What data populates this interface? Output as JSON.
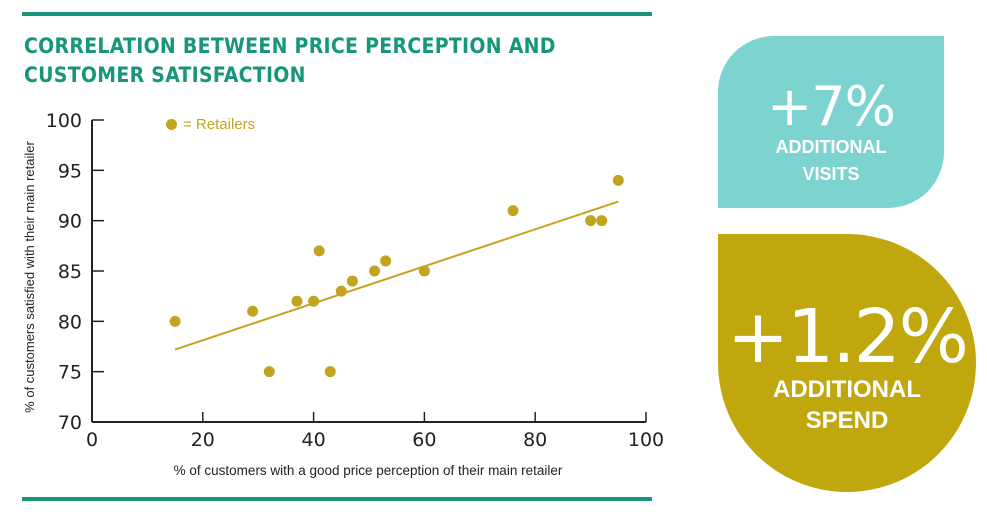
{
  "header": {
    "title": "CORRELATION BETWEEN PRICE PERCEPTION AND CUSTOMER SATISFACTION"
  },
  "colors": {
    "accent_green": "#17967a",
    "point_gold": "#c2a41e",
    "visits_panel": "#7dd3d0",
    "spend_panel": "#bfa70d"
  },
  "chart_data": {
    "type": "scatter",
    "title": "CORRELATION BETWEEN PRICE PERCEPTION AND CUSTOMER SATISFACTION",
    "xlabel": "% of customers with a good price perception of their main retailer",
    "ylabel": "% of customers satisfied with their main retailer",
    "xlim": [
      0,
      100
    ],
    "ylim": [
      70,
      100
    ],
    "x_ticks": [
      0,
      20,
      40,
      60,
      80,
      100
    ],
    "y_ticks": [
      70,
      75,
      80,
      85,
      90,
      95,
      100
    ],
    "legend": {
      "marker": "●",
      "label": "= Retailers",
      "position": "top-left"
    },
    "series": [
      {
        "name": "Retailers",
        "points": [
          {
            "x": 15,
            "y": 80
          },
          {
            "x": 29,
            "y": 81
          },
          {
            "x": 32,
            "y": 75
          },
          {
            "x": 37,
            "y": 82
          },
          {
            "x": 40,
            "y": 82
          },
          {
            "x": 41,
            "y": 87
          },
          {
            "x": 43,
            "y": 75
          },
          {
            "x": 45,
            "y": 83
          },
          {
            "x": 47,
            "y": 84
          },
          {
            "x": 51,
            "y": 85
          },
          {
            "x": 53,
            "y": 86
          },
          {
            "x": 60,
            "y": 85
          },
          {
            "x": 76,
            "y": 91
          },
          {
            "x": 90,
            "y": 90
          },
          {
            "x": 92,
            "y": 90
          },
          {
            "x": 95,
            "y": 94
          }
        ]
      }
    ],
    "trendline": {
      "x": [
        15,
        95
      ],
      "y": [
        77.2,
        91.9
      ]
    },
    "grid": false
  },
  "stats": {
    "visits": {
      "value": "+7%",
      "label_line1": "ADDITIONAL",
      "label_line2": "VISITS"
    },
    "spend": {
      "value": "+1.2%",
      "label_line1": "ADDITIONAL",
      "label_line2": "SPEND"
    }
  }
}
